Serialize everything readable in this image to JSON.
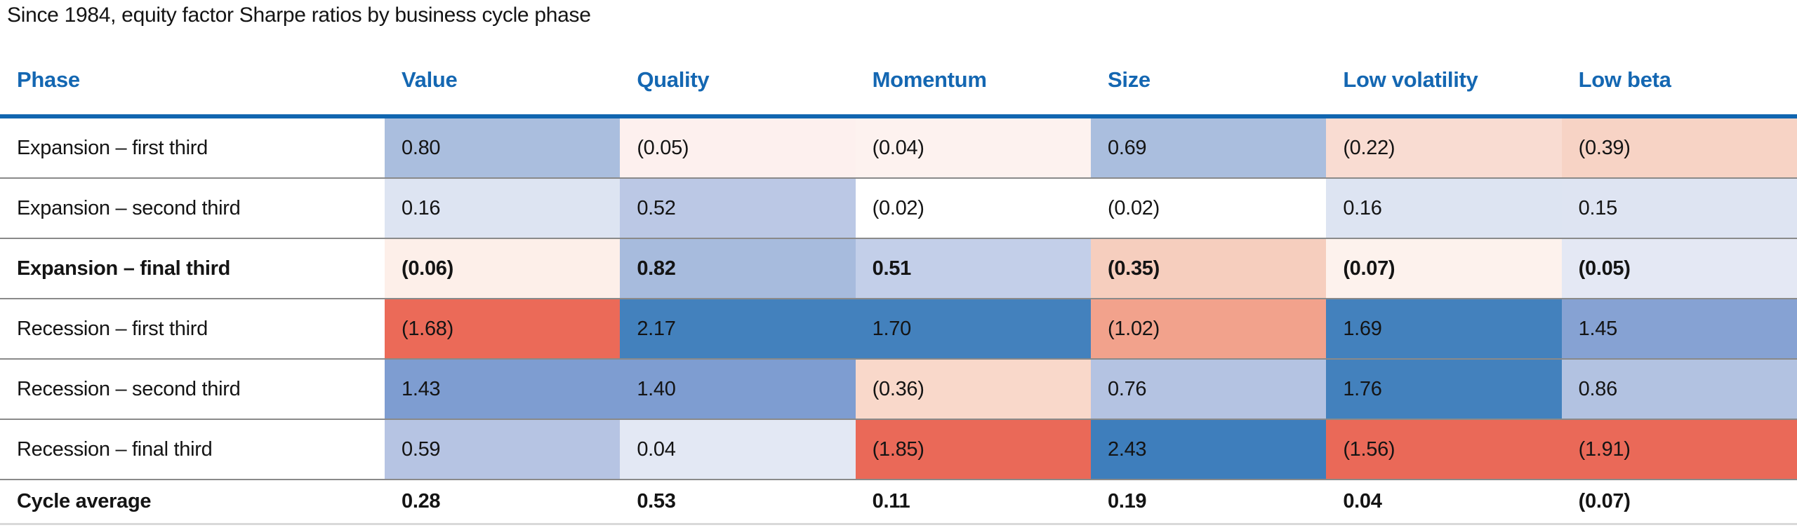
{
  "title": "Since 1984, equity factor Sharpe ratios by business cycle phase",
  "table": {
    "columns": [
      "Phase",
      "Value",
      "Quality",
      "Momentum",
      "Size",
      "Low volatility",
      "Low beta"
    ],
    "header_text_color": "#1467b2",
    "header_rule_color": "#1166b0",
    "rows": [
      {
        "label": "Expansion – first third",
        "bold": false,
        "cells": [
          {
            "text": "0.80",
            "bg": "#aabede"
          },
          {
            "text": "(0.05)",
            "bg": "#fdf0ee"
          },
          {
            "text": "(0.04)",
            "bg": "#fdf2ef"
          },
          {
            "text": "0.69",
            "bg": "#aabede"
          },
          {
            "text": "(0.22)",
            "bg": "#f9dcd2"
          },
          {
            "text": "(0.39)",
            "bg": "#f7d3c5"
          }
        ]
      },
      {
        "label": "Expansion – second third",
        "bold": false,
        "cells": [
          {
            "text": "0.16",
            "bg": "#dde4f2"
          },
          {
            "text": "0.52",
            "bg": "#bbc8e5"
          },
          {
            "text": "(0.02)",
            "bg": "#ffffff"
          },
          {
            "text": "(0.02)",
            "bg": "#ffffff"
          },
          {
            "text": "0.16",
            "bg": "#dde4f2"
          },
          {
            "text": "0.15",
            "bg": "#dee4f2"
          }
        ]
      },
      {
        "label": "Expansion – final third",
        "bold": true,
        "cells": [
          {
            "text": "(0.06)",
            "bg": "#fdefe9"
          },
          {
            "text": "0.82",
            "bg": "#a7bbdd"
          },
          {
            "text": "0.51",
            "bg": "#c3cfe9"
          },
          {
            "text": "(0.35)",
            "bg": "#f6cebe"
          },
          {
            "text": "(0.07)",
            "bg": "#fdf2ed"
          },
          {
            "text": "(0.05)",
            "bg": "#e4e8f4"
          }
        ]
      },
      {
        "label": "Recession – first third",
        "bold": false,
        "cells": [
          {
            "text": "(1.68)",
            "bg": "#eb6a58"
          },
          {
            "text": "2.17",
            "bg": "#4381bd"
          },
          {
            "text": "1.70",
            "bg": "#4381bd"
          },
          {
            "text": "(1.02)",
            "bg": "#f2a28c"
          },
          {
            "text": "1.69",
            "bg": "#4381bd"
          },
          {
            "text": "1.45",
            "bg": "#86a2d3"
          }
        ]
      },
      {
        "label": "Recession – second third",
        "bold": false,
        "cells": [
          {
            "text": "1.43",
            "bg": "#7e9dd1"
          },
          {
            "text": "1.40",
            "bg": "#7e9dd1"
          },
          {
            "text": "(0.36)",
            "bg": "#f9d8ca"
          },
          {
            "text": "0.76",
            "bg": "#b4c3e2"
          },
          {
            "text": "1.76",
            "bg": "#4381bd"
          },
          {
            "text": "0.86",
            "bg": "#b2c2e1"
          }
        ]
      },
      {
        "label": "Recession – final third",
        "bold": false,
        "cells": [
          {
            "text": "0.59",
            "bg": "#b6c4e3"
          },
          {
            "text": "0.04",
            "bg": "#e3e8f4"
          },
          {
            "text": "(1.85)",
            "bg": "#ea6958"
          },
          {
            "text": "2.43",
            "bg": "#3e7ebc"
          },
          {
            "text": "(1.56)",
            "bg": "#ea6958"
          },
          {
            "text": "(1.91)",
            "bg": "#ea6958"
          }
        ]
      }
    ],
    "footer": {
      "label": "Cycle average",
      "bold": true,
      "cells": [
        {
          "text": "0.28",
          "bg": "#ffffff"
        },
        {
          "text": "0.53",
          "bg": "#ffffff"
        },
        {
          "text": "0.11",
          "bg": "#ffffff"
        },
        {
          "text": "0.19",
          "bg": "#ffffff"
        },
        {
          "text": "0.04",
          "bg": "#ffffff"
        },
        {
          "text": "(0.07)",
          "bg": "#ffffff"
        }
      ]
    }
  },
  "chart_data": {
    "type": "heatmap",
    "title": "Since 1984, equity factor Sharpe ratios by business cycle phase",
    "columns": [
      "Value",
      "Quality",
      "Momentum",
      "Size",
      "Low volatility",
      "Low beta"
    ],
    "row_labels": [
      "Expansion – first third",
      "Expansion – second third",
      "Expansion – final third",
      "Recession – first third",
      "Recession – second third",
      "Recession – final third",
      "Cycle average"
    ],
    "values": [
      [
        0.8,
        -0.05,
        -0.04,
        0.69,
        -0.22,
        -0.39
      ],
      [
        0.16,
        0.52,
        -0.02,
        -0.02,
        0.16,
        0.15
      ],
      [
        -0.06,
        0.82,
        0.51,
        -0.35,
        -0.07,
        -0.05
      ],
      [
        -1.68,
        2.17,
        1.7,
        -1.02,
        1.69,
        1.45
      ],
      [
        1.43,
        1.4,
        -0.36,
        0.76,
        1.76,
        0.86
      ],
      [
        0.59,
        0.04,
        -1.85,
        2.43,
        -1.56,
        -1.91
      ],
      [
        0.28,
        0.53,
        0.11,
        0.19,
        0.04,
        -0.07
      ]
    ],
    "value_format": "negative values shown in parentheses",
    "color_encoding": {
      "positive": "blue scale",
      "negative": "red scale",
      "strong_blue": "#4381bd",
      "strong_red": "#ea6958"
    },
    "legend": "none",
    "grid": "horizontal gray separators between rows"
  }
}
